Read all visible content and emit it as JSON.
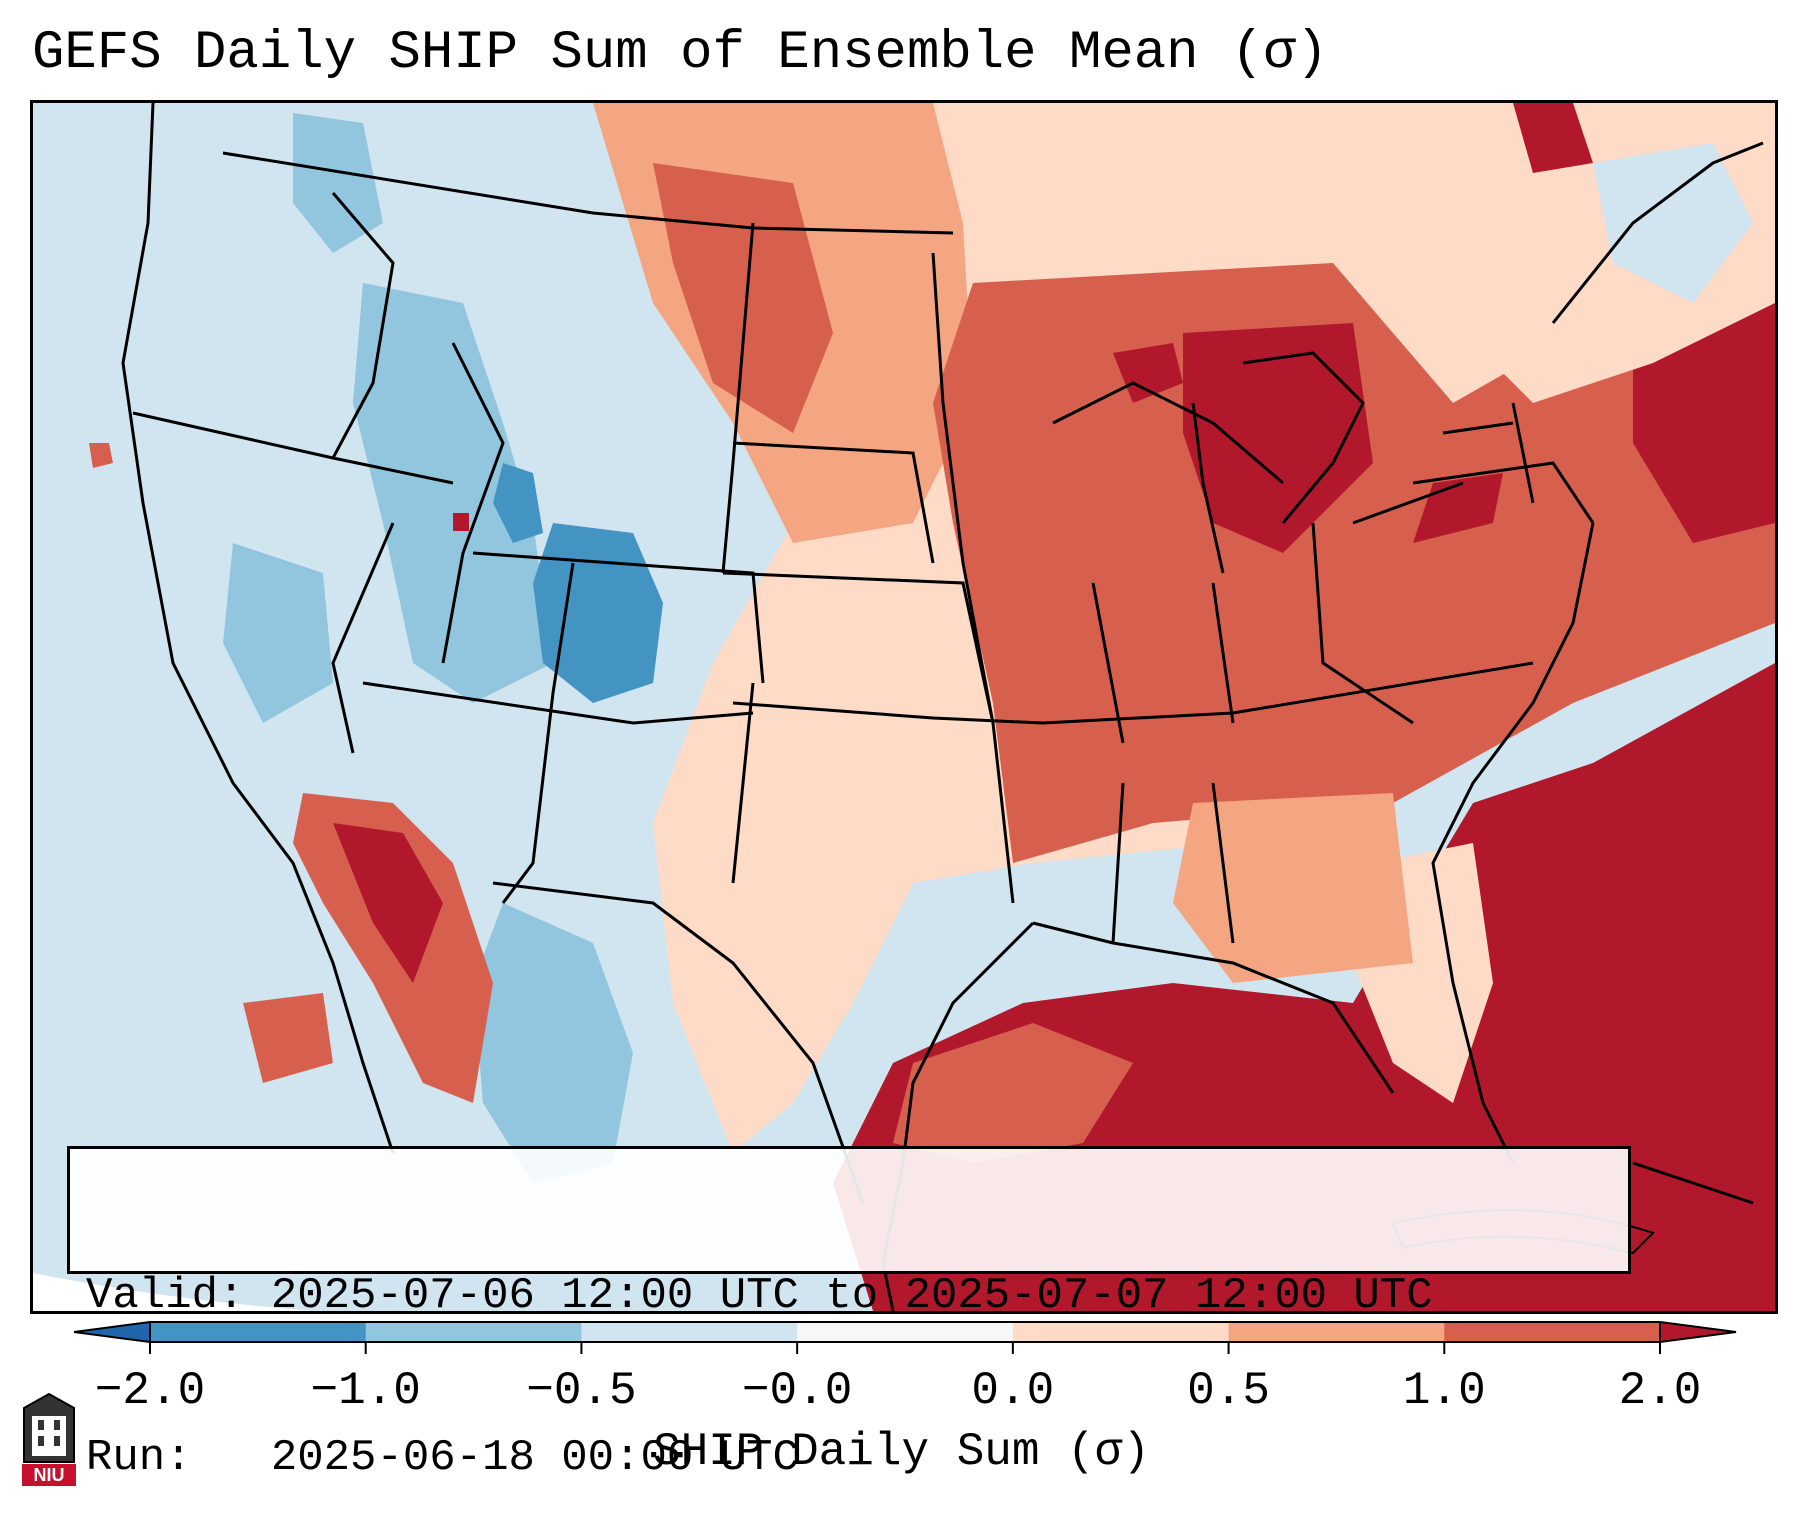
{
  "title": "GEFS Daily SHIP Sum of Ensemble Mean (σ)",
  "info": {
    "valid": "Valid: 2025-07-06 12:00 UTC to 2025-07-07 12:00 UTC",
    "run": "Run:   2025-06-18 00:00 UTC"
  },
  "colorbar": {
    "label": "SHIP Daily Sum (σ)",
    "ticks": [
      "−2.0",
      "−1.0",
      "−0.5",
      "−0.0",
      "0.0",
      "0.5",
      "1.0",
      "2.0"
    ],
    "segments": [
      {
        "range": "-2.0 to -1.0",
        "color": "#4393c3"
      },
      {
        "range": "-1.0 to -0.5",
        "color": "#92c5de"
      },
      {
        "range": "-0.5 to -0.0",
        "color": "#d1e5f0"
      },
      {
        "range": "-0.0 to 0.0",
        "color": "#f7f7f7"
      },
      {
        "range": "0.0 to 0.5",
        "color": "#fddbc7"
      },
      {
        "range": "0.5 to 1.0",
        "color": "#f4a582"
      },
      {
        "range": "1.0 to 2.0",
        "color": "#d6604d"
      }
    ],
    "extend_low_color": "#2166ac",
    "extend_high_color": "#b2182b"
  },
  "logo": {
    "text": "NIU",
    "icon": "university-seal-icon"
  }
}
